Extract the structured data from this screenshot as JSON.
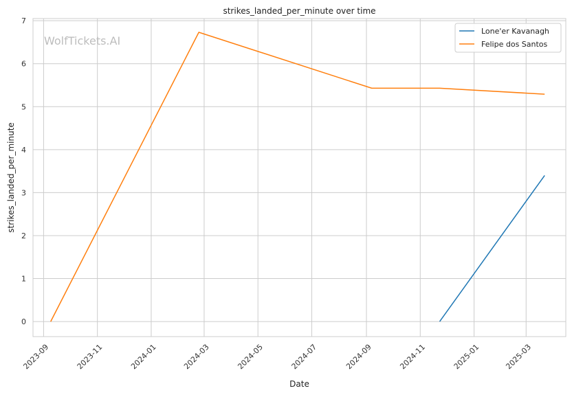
{
  "chart_data": {
    "type": "line",
    "title": "strikes_landed_per_minute over time",
    "xlabel": "Date",
    "ylabel": "strikes_landed_per_minute",
    "watermark": "WolfTickets.AI",
    "x_axis": {
      "type": "date",
      "range": [
        "2023-08-20",
        "2025-04-15"
      ],
      "ticks": [
        {
          "date": "2023-09-01",
          "label": "2023-09"
        },
        {
          "date": "2023-11-01",
          "label": "2023-11"
        },
        {
          "date": "2024-01-01",
          "label": "2024-01"
        },
        {
          "date": "2024-03-01",
          "label": "2024-03"
        },
        {
          "date": "2024-05-01",
          "label": "2024-05"
        },
        {
          "date": "2024-07-01",
          "label": "2024-07"
        },
        {
          "date": "2024-09-01",
          "label": "2024-09"
        },
        {
          "date": "2024-11-01",
          "label": "2024-11"
        },
        {
          "date": "2025-01-01",
          "label": "2025-01"
        },
        {
          "date": "2025-03-01",
          "label": "2025-03"
        }
      ]
    },
    "ylim": [
      -0.35,
      7.05
    ],
    "y_ticks": [
      0,
      1,
      2,
      3,
      4,
      5,
      6,
      7
    ],
    "grid": true,
    "legend_position": "top-right",
    "series": [
      {
        "name": "Lone'er Kavanagh",
        "color": "#1f77b4",
        "points": [
          {
            "x": "2024-11-23",
            "y": 0
          },
          {
            "x": "2025-03-22",
            "y": 3.4
          }
        ]
      },
      {
        "name": "Felipe dos Santos",
        "color": "#ff7f0e",
        "points": [
          {
            "x": "2023-09-09",
            "y": 0
          },
          {
            "x": "2024-02-24",
            "y": 6.73
          },
          {
            "x": "2024-09-07",
            "y": 5.43
          },
          {
            "x": "2024-11-23",
            "y": 5.43
          },
          {
            "x": "2025-03-22",
            "y": 5.29
          }
        ]
      }
    ]
  }
}
